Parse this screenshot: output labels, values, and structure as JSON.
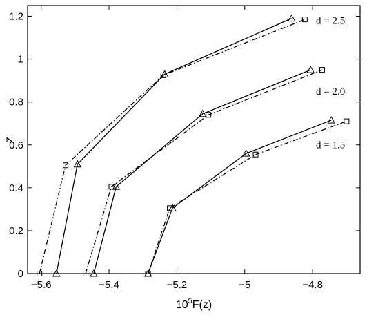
{
  "chart_data": {
    "type": "line",
    "title": "",
    "xlabel": "10",
    "xlabel_sup": "5",
    "xlabel_rest": "F(z)",
    "ylabel": "z",
    "xlim": [
      -5.64,
      -4.66
    ],
    "ylim": [
      0,
      1.25
    ],
    "xticks": [
      -5.6,
      -5.4,
      -5.2,
      -5.0,
      -4.8
    ],
    "xtick_labels": [
      "−5.6",
      "−5.4",
      "−5.2",
      "−5",
      "−4.8"
    ],
    "yticks": [
      0,
      0.2,
      0.4,
      0.6,
      0.8,
      1.0,
      1.2
    ],
    "ytick_labels": [
      "0",
      "0.2",
      "0.4",
      "0.6",
      "0.8",
      "1",
      "1.2"
    ],
    "grid": false,
    "series": [
      {
        "group": "d = 2.5",
        "style": "solid",
        "marker": "triangle",
        "x": [
          -5.555,
          -5.493,
          -5.236,
          -4.862
        ],
        "y": [
          0,
          0.51,
          0.93,
          1.19
        ]
      },
      {
        "group": "d = 2.5",
        "style": "dashdot",
        "marker": "square",
        "x": [
          -5.605,
          -5.528,
          -5.24,
          -4.823
        ],
        "y": [
          0,
          0.505,
          0.925,
          1.185
        ]
      },
      {
        "group": "d = 2.0",
        "style": "solid",
        "marker": "triangle",
        "x": [
          -5.445,
          -5.379,
          -5.124,
          -4.806
        ],
        "y": [
          0,
          0.405,
          0.745,
          0.95
        ]
      },
      {
        "group": "d = 2.0",
        "style": "dashdot",
        "marker": "square",
        "x": [
          -5.469,
          -5.393,
          -5.107,
          -4.772
        ],
        "y": [
          0,
          0.405,
          0.74,
          0.95
        ]
      },
      {
        "group": "d = 1.5",
        "style": "solid",
        "marker": "triangle",
        "x": [
          -5.285,
          -5.213,
          -4.996,
          -4.745
        ],
        "y": [
          0,
          0.305,
          0.56,
          0.715
        ]
      },
      {
        "group": "d = 1.5",
        "style": "dashdot",
        "marker": "square",
        "x": [
          -5.285,
          -5.221,
          -4.968,
          -4.7
        ],
        "y": [
          0,
          0.305,
          0.555,
          0.71
        ]
      }
    ],
    "annotations": [
      {
        "text": "d = 2.5",
        "x": -4.79,
        "y": 1.165
      },
      {
        "text": "d = 2.0",
        "x": -4.79,
        "y": 0.835
      },
      {
        "text": "d = 1.5",
        "x": -4.79,
        "y": 0.585
      }
    ]
  }
}
